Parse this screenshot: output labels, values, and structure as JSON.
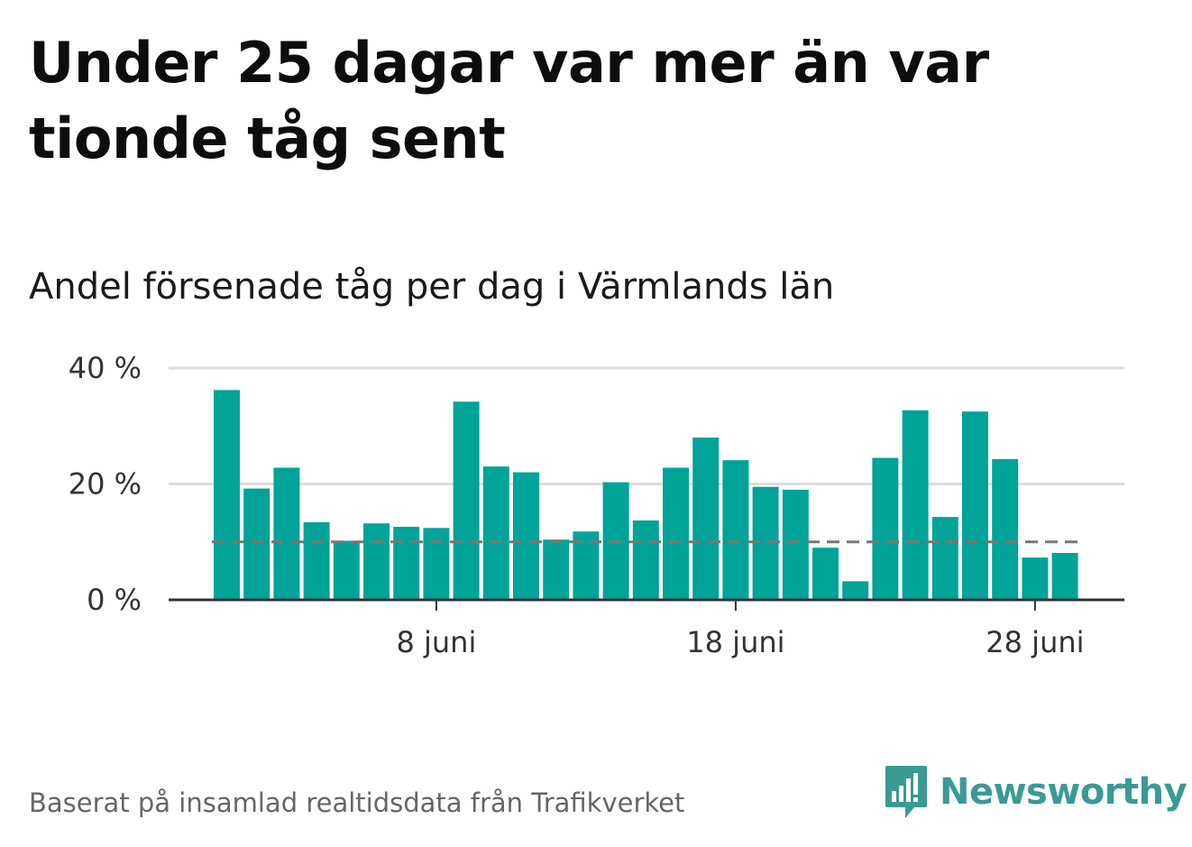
{
  "title": "Under 25 dagar var mer än var tionde tåg sent",
  "subtitle": "Andel försenade tåg per dag i Värmlands län",
  "footer": "Baserat på insamlad realtidsdata från Trafikverket",
  "logo": {
    "name": "Newsworthy",
    "icon": "newsworthy-logo-icon",
    "color": "#3a9a94"
  },
  "colors": {
    "bar": "#00a398",
    "grid": "#dddddd",
    "axis": "#333333",
    "reference": "#777777"
  },
  "chart_data": {
    "type": "bar",
    "x": [
      "1 juni",
      "2 juni",
      "3 juni",
      "4 juni",
      "5 juni",
      "6 juni",
      "7 juni",
      "8 juni",
      "9 juni",
      "10 juni",
      "11 juni",
      "12 juni",
      "13 juni",
      "14 juni",
      "15 juni",
      "16 juni",
      "17 juni",
      "18 juni",
      "19 juni",
      "20 juni",
      "21 juni",
      "22 juni",
      "23 juni",
      "24 juni",
      "25 juni",
      "26 juni",
      "27 juni",
      "28 juni",
      "29 juni"
    ],
    "values": [
      36.2,
      19.2,
      22.8,
      13.4,
      10.2,
      13.2,
      12.6,
      12.4,
      34.2,
      23.0,
      22.0,
      10.4,
      11.8,
      20.3,
      13.7,
      22.8,
      28.0,
      24.1,
      19.5,
      19.0,
      9.0,
      3.2,
      24.5,
      32.7,
      14.3,
      32.5,
      24.3,
      7.3,
      8.1
    ],
    "reference_line": 10,
    "yticks": [
      0,
      20,
      40
    ],
    "ytick_labels": [
      "0 %",
      "20 %",
      "40 %"
    ],
    "xticks": [
      "8 juni",
      "18 juni",
      "28 juni"
    ],
    "ylim": [
      0,
      40
    ],
    "grid": true,
    "legend": "none"
  }
}
